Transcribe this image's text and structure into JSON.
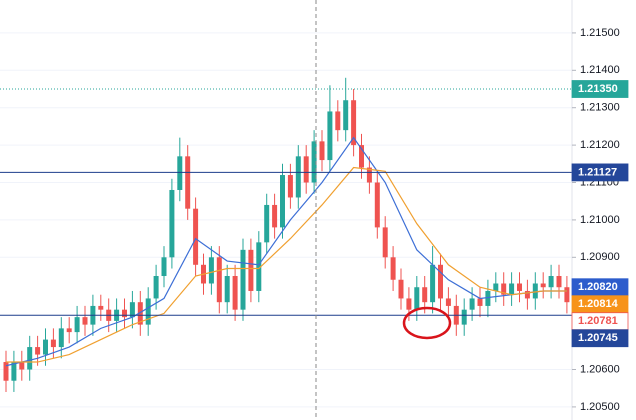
{
  "chart_data": {
    "type": "candlestick",
    "ylim": [
      1.20465,
      1.21588
    ],
    "yticks": [
      {
        "value": 1.215,
        "label": "1.21500"
      },
      {
        "value": 1.214,
        "label": "1.21400"
      },
      {
        "value": 1.213,
        "label": "1.21300"
      },
      {
        "value": 1.212,
        "label": "1.21200"
      },
      {
        "value": 1.211,
        "label": "1.21100"
      },
      {
        "value": 1.21,
        "label": "1.21000"
      },
      {
        "value": 1.209,
        "label": "1.20900"
      },
      {
        "value": 1.206,
        "label": "1.20600"
      },
      {
        "value": 1.205,
        "label": "1.20500"
      }
    ],
    "grid": true,
    "up_color": "#26a69a",
    "down_color": "#ef5350",
    "open": [
      1.2062,
      1.2057,
      1.2062,
      1.206,
      1.2066,
      1.2064,
      1.2068,
      1.2066,
      1.2071,
      1.207,
      1.2074,
      1.2072,
      1.2077,
      1.2076,
      1.2073,
      1.2076,
      1.2074,
      1.2078,
      1.2072,
      1.2079,
      1.2085,
      1.209,
      1.2108,
      1.2117,
      1.2103,
      1.2088,
      1.2083,
      1.209,
      1.2078,
      1.2085,
      1.2076,
      1.2092,
      1.2081,
      1.2094,
      1.2104,
      1.2098,
      1.2112,
      1.2106,
      1.2117,
      1.211,
      1.2121,
      1.2116,
      1.2129,
      1.2124,
      1.2132,
      1.212,
      1.2114,
      1.211,
      1.2098,
      1.209,
      1.2084,
      1.2079,
      1.2076,
      1.2082,
      1.2078,
      1.2088,
      1.2079,
      1.2077,
      1.2072,
      1.2076,
      1.2079,
      1.2077,
      1.2081,
      1.2083,
      1.208,
      1.2083,
      1.2081,
      1.2079,
      1.2083,
      1.2082,
      1.2085,
      1.2082
    ],
    "high": [
      1.2065,
      1.2065,
      1.2065,
      1.2069,
      1.2069,
      1.2071,
      1.2071,
      1.2074,
      1.2074,
      1.2077,
      1.2077,
      1.208,
      1.208,
      1.2079,
      1.2079,
      1.2079,
      1.2081,
      1.2081,
      1.2082,
      1.2088,
      1.2093,
      1.2111,
      1.2122,
      1.212,
      1.2106,
      1.2091,
      1.2093,
      1.2093,
      1.2088,
      1.2088,
      1.2095,
      1.2095,
      1.2097,
      1.2107,
      1.2107,
      1.2115,
      1.2115,
      1.212,
      1.212,
      1.2124,
      1.2124,
      1.2136,
      1.2132,
      1.2138,
      1.2135,
      1.2123,
      1.2117,
      1.2113,
      1.2101,
      1.2093,
      1.2087,
      1.2082,
      1.2085,
      1.2085,
      1.2093,
      1.2091,
      1.2082,
      1.208,
      1.2079,
      1.2082,
      1.2082,
      1.2084,
      1.2086,
      1.2086,
      1.2086,
      1.2086,
      1.2084,
      1.2086,
      1.2086,
      1.2088,
      1.2088,
      1.2085
    ],
    "low": [
      1.2054,
      1.2054,
      1.2057,
      1.2057,
      1.2061,
      1.2061,
      1.2063,
      1.2063,
      1.2067,
      1.2067,
      1.2069,
      1.2069,
      1.2073,
      1.207,
      1.207,
      1.2071,
      1.2071,
      1.2069,
      1.2069,
      1.2076,
      1.2082,
      1.2087,
      1.2105,
      1.21,
      1.2085,
      1.208,
      1.208,
      1.2075,
      1.2075,
      1.2073,
      1.2073,
      1.2078,
      1.2078,
      1.2091,
      1.2095,
      1.2095,
      1.2103,
      1.2103,
      1.2107,
      1.2107,
      1.2113,
      1.2113,
      1.2121,
      1.2121,
      1.2117,
      1.2111,
      1.2107,
      1.2095,
      1.2087,
      1.2081,
      1.2076,
      1.2073,
      1.2073,
      1.2075,
      1.2075,
      1.2076,
      1.2074,
      1.2069,
      1.2069,
      1.2073,
      1.2074,
      1.2074,
      1.2078,
      1.2077,
      1.2077,
      1.2078,
      1.2076,
      1.2076,
      1.2079,
      1.2079,
      1.2079,
      1.2075
    ],
    "close": [
      1.2057,
      1.2062,
      1.206,
      1.2066,
      1.2064,
      1.2068,
      1.2066,
      1.2071,
      1.207,
      1.2074,
      1.2072,
      1.2077,
      1.2076,
      1.2073,
      1.2076,
      1.2074,
      1.2078,
      1.2072,
      1.2079,
      1.2085,
      1.209,
      1.2108,
      1.2117,
      1.2103,
      1.2088,
      1.2083,
      1.209,
      1.2078,
      1.2085,
      1.2076,
      1.2092,
      1.2081,
      1.2094,
      1.2104,
      1.2098,
      1.2112,
      1.2106,
      1.2117,
      1.211,
      1.2121,
      1.2116,
      1.2129,
      1.2124,
      1.2132,
      1.212,
      1.2114,
      1.211,
      1.2098,
      1.209,
      1.2084,
      1.2079,
      1.2076,
      1.2082,
      1.2078,
      1.2088,
      1.2079,
      1.2077,
      1.2072,
      1.2076,
      1.2079,
      1.2077,
      1.2081,
      1.2083,
      1.208,
      1.2083,
      1.2081,
      1.2079,
      1.2083,
      1.2082,
      1.2085,
      1.2082,
      1.2078
    ],
    "lines": [
      {
        "color": "#3d6fd6",
        "x": [
          0,
          4,
          8,
          12,
          16,
          20,
          24,
          28,
          32,
          36,
          40,
          44,
          48,
          52,
          56,
          60,
          64,
          68,
          71
        ],
        "values": [
          1.2061,
          1.2063,
          1.2066,
          1.2071,
          1.2074,
          1.2079,
          1.2095,
          1.2089,
          1.2088,
          1.21,
          1.211,
          1.2122,
          1.211,
          1.2092,
          1.2084,
          1.2079,
          1.208,
          1.2081,
          1.2081
        ]
      },
      {
        "color": "#f0a030",
        "x": [
          0,
          4,
          8,
          12,
          16,
          20,
          24,
          28,
          32,
          36,
          40,
          44,
          48,
          52,
          56,
          60,
          64,
          68,
          71
        ],
        "values": [
          1.2062,
          1.2062,
          1.2064,
          1.2068,
          1.2072,
          1.2075,
          1.2085,
          1.2087,
          1.2087,
          1.2095,
          1.2104,
          1.2114,
          1.2113,
          1.2099,
          1.2088,
          1.2082,
          1.208,
          1.2081,
          1.2081
        ]
      }
    ],
    "price_labels": [
      {
        "value": 1.2135,
        "label": "1.21350",
        "color": "#26a69a",
        "text_color": "#ffffff",
        "line": "dotted"
      },
      {
        "value": 1.21127,
        "label": "1.21127",
        "color": "#24479a",
        "text_color": "#ffffff",
        "line": "solid"
      },
      {
        "value": 1.2082,
        "label": "1.20820",
        "color": "#2d5ccc",
        "text_color": "#ffffff"
      },
      {
        "value": 1.20814,
        "label": "1.20814",
        "color": "#f7931a",
        "text_color": "#ffffff"
      },
      {
        "value": 1.20781,
        "label": "1.20781",
        "color": "#ffffff",
        "text_color": "#ef5350"
      },
      {
        "value": 1.20745,
        "label": "1.20745",
        "color": "#24479a",
        "text_color": "#ffffff",
        "line": "solid"
      }
    ]
  }
}
